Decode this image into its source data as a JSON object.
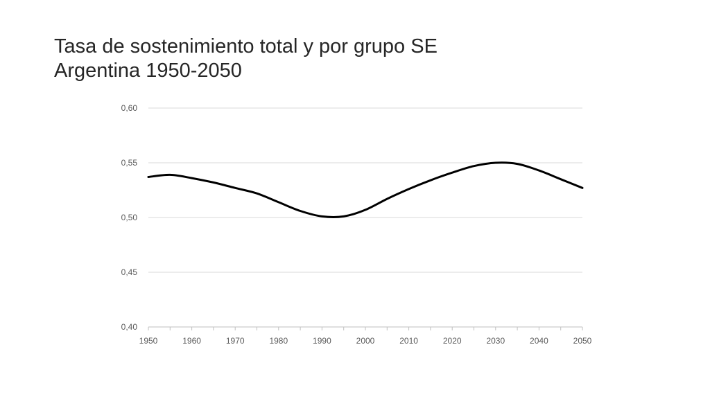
{
  "slide": {
    "title_line1": "Tasa de sostenimiento total y por grupo SE",
    "title_line2": "Argentina 1950-2050"
  },
  "chart_data": {
    "type": "line",
    "title": "",
    "xlabel": "",
    "ylabel": "",
    "xlim": [
      1950,
      2050
    ],
    "ylim": [
      0.4,
      0.6
    ],
    "grid": "horizontal",
    "legend": "none",
    "x_ticks": [
      1950,
      1960,
      1970,
      1980,
      1990,
      2000,
      2010,
      2020,
      2030,
      2040,
      2050
    ],
    "x_tick_labels": [
      "1950",
      "1960",
      "1970",
      "1980",
      "1990",
      "2000",
      "2010",
      "2020",
      "2030",
      "2040",
      "2050"
    ],
    "y_ticks": [
      0.4,
      0.45,
      0.5,
      0.55,
      0.6
    ],
    "y_tick_labels": [
      "0,40",
      "0,45",
      "0,50",
      "0,55",
      "0,60"
    ],
    "line_color": "#000000",
    "grid_color": "#d9d9d9",
    "series": [
      {
        "x": [
          1950,
          1955,
          1960,
          1965,
          1970,
          1975,
          1980,
          1985,
          1990,
          1995,
          2000,
          2005,
          2010,
          2015,
          2020,
          2025,
          2030,
          2035,
          2040,
          2045,
          2050
        ],
        "values": [
          0.537,
          0.539,
          0.536,
          0.532,
          0.527,
          0.522,
          0.514,
          0.506,
          0.501,
          0.501,
          0.507,
          0.517,
          0.526,
          0.534,
          0.541,
          0.547,
          0.55,
          0.549,
          0.543,
          0.535,
          0.527
        ]
      }
    ]
  }
}
